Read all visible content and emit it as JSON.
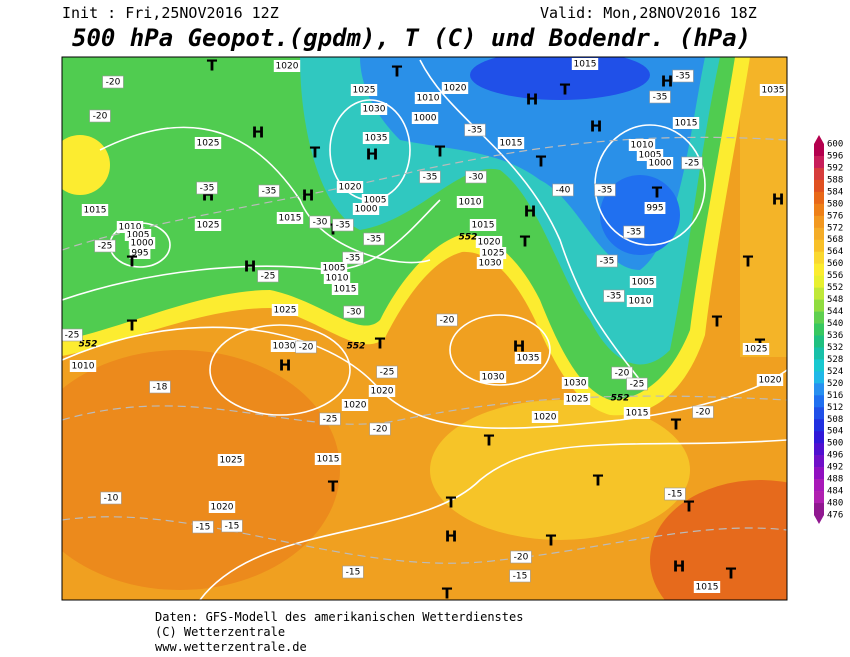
{
  "header": {
    "init": "Init : Fri,25NOV2016 12Z",
    "valid": "Valid: Mon,28NOV2016 18Z",
    "title": "500 hPa Geopot.(gpdm), T (C) und Bodendr. (hPa)"
  },
  "colorbar": {
    "labels": [
      "600",
      "596",
      "592",
      "588",
      "584",
      "580",
      "576",
      "572",
      "568",
      "564",
      "560",
      "556",
      "552",
      "548",
      "544",
      "540",
      "536",
      "532",
      "528",
      "524",
      "520",
      "516",
      "512",
      "508",
      "504",
      "500",
      "496",
      "492",
      "488",
      "484",
      "480",
      "476"
    ],
    "colors": [
      "#b4004e",
      "#c81e5a",
      "#d63c3c",
      "#e05020",
      "#e86818",
      "#ee8018",
      "#f29820",
      "#f4ac28",
      "#f8c028",
      "#fad830",
      "#fcec30",
      "#e8f030",
      "#c0e838",
      "#90dc40",
      "#60d050",
      "#38c860",
      "#20c080",
      "#18c0a8",
      "#18c8d0",
      "#20b8e8",
      "#2890f0",
      "#2070f0",
      "#2050e8",
      "#2030e0",
      "#3018d8",
      "#5010d0",
      "#7010c8",
      "#9010c0",
      "#a818b8",
      "#b020b0",
      "#901890"
    ]
  },
  "map": {
    "labels": [
      "T",
      "1020",
      "-20",
      "-20",
      "1025",
      "T",
      "1020",
      "1010",
      "1030",
      "1000",
      "-35",
      "1015",
      "H",
      "T",
      "1015",
      "H",
      "-35",
      "-35",
      "1035",
      "H",
      "1015",
      "1025",
      "H",
      "T",
      "H",
      "1035",
      "T",
      "-35",
      "-30",
      "T",
      "1010",
      "1005",
      "1000",
      "-25",
      "H",
      "-35",
      "-35",
      "H",
      "1020",
      "1005",
      "1000",
      "T",
      "-35",
      "-30",
      "1015",
      "1010",
      "-40",
      "-35",
      "T",
      "995",
      "1015",
      "1010",
      "1005",
      "1000",
      "995",
      "-25",
      "T",
      "-35",
      "1025",
      "H",
      "1015",
      "1020",
      "T",
      "-35",
      "-35",
      "1025",
      "1030",
      "-35",
      "H",
      "-25",
      "1005",
      "1010",
      "1015",
      "H",
      "T",
      "1005",
      "-35",
      "1010",
      "1025",
      "-30",
      "T",
      "552",
      "552",
      "552",
      "552",
      "-25",
      "-20",
      "1030",
      "-20",
      "H",
      "T",
      "H",
      "1035",
      "1010",
      "-25",
      "1030",
      "1020",
      "-18",
      "-20",
      "1030",
      "-25",
      "1025",
      "1015",
      "1020",
      "T",
      "T",
      "1025",
      "1020",
      "-25",
      "-20",
      "1020",
      "T",
      "-20",
      "T",
      "1025",
      "1015",
      "T",
      "-10",
      "1020",
      "-15",
      "-15",
      "T",
      "T",
      "-15",
      "T",
      "H",
      "T",
      "-20",
      "-15",
      "-15",
      "H",
      "1015",
      "T",
      "T"
    ]
  },
  "footer": {
    "line1": "Daten: GFS-Modell des amerikanischen Wetterdienstes",
    "line2": "(C) Wetterzentrale",
    "line3": "www.wetterzentrale.de"
  }
}
